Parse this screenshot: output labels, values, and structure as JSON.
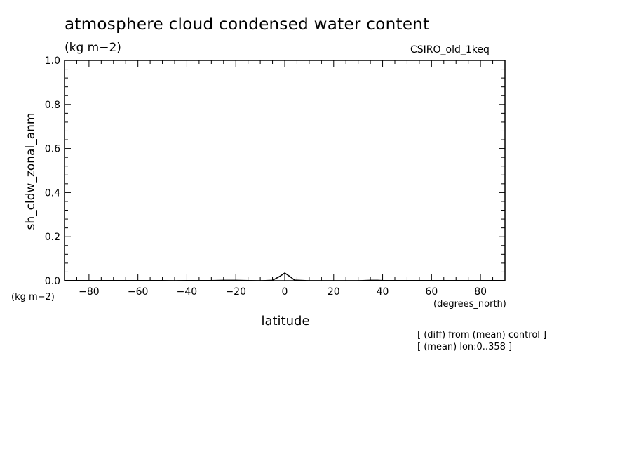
{
  "chart_data": {
    "type": "line",
    "title": "atmosphere cloud condensed water content",
    "units": "(kg m−2)",
    "model": "CSIRO_old_1keq",
    "ylabel": "sh_cldw_zonal_anm",
    "yunits": "(kg m−2)",
    "xlabel": "latitude",
    "xunits": "(degrees_north)",
    "notes": [
      "[ (diff) from (mean) control ]",
      "[ (mean) lon:0..358 ]"
    ],
    "xlim": [
      -90,
      90
    ],
    "ylim": [
      0,
      1.0
    ],
    "xticks": [
      -80,
      -60,
      -40,
      -20,
      0,
      20,
      40,
      60,
      80
    ],
    "yticks": [
      0.0,
      0.2,
      0.4,
      0.6,
      0.8,
      1.0
    ],
    "xtick_labels": [
      "−80",
      "−60",
      "−40",
      "−20",
      "0",
      "20",
      "40",
      "60",
      "80"
    ],
    "ytick_labels": [
      "0.0",
      "0.2",
      "0.4",
      "0.6",
      "0.8",
      "1.0"
    ],
    "grid": false,
    "series": [
      {
        "color": "#000000",
        "x": [
          -90,
          -80,
          -60,
          -50,
          -45,
          -40,
          -30,
          -25,
          -20,
          -15,
          -10,
          -5,
          -2,
          0,
          2,
          4,
          10,
          20,
          30,
          35,
          38,
          40,
          50,
          60,
          70,
          80,
          90
        ],
        "y": [
          0.001,
          0.001,
          0.001,
          0.001,
          0.0,
          0.001,
          0.001,
          0.002,
          0.002,
          0.001,
          0.0,
          0.002,
          0.02,
          0.035,
          0.02,
          0.003,
          0.0,
          0.0,
          0.0,
          0.002,
          0.002,
          0.001,
          0.001,
          0.001,
          0.001,
          0.001,
          0.001
        ]
      }
    ]
  }
}
